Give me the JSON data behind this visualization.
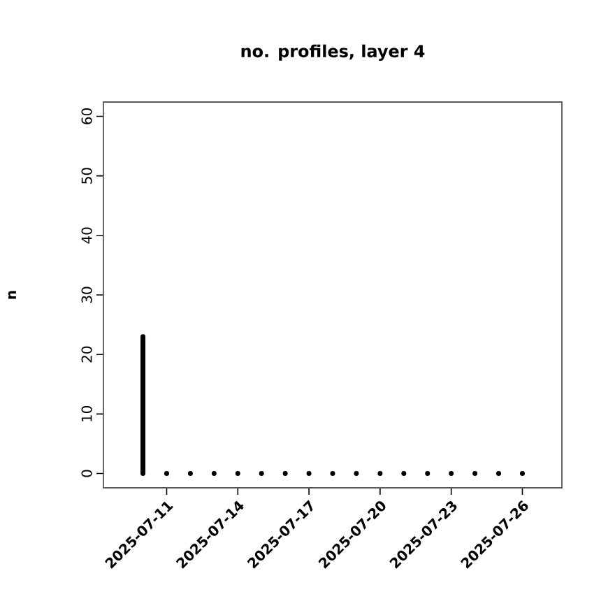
{
  "chart_data": {
    "type": "bar",
    "title": "no. profiles, layer 4",
    "ylabel": "n",
    "x": [
      "2025-07-10",
      "2025-07-11",
      "2025-07-12",
      "2025-07-13",
      "2025-07-14",
      "2025-07-15",
      "2025-07-16",
      "2025-07-17",
      "2025-07-18",
      "2025-07-19",
      "2025-07-20",
      "2025-07-21",
      "2025-07-22",
      "2025-07-23",
      "2025-07-24",
      "2025-07-25",
      "2025-07-26"
    ],
    "values": [
      23,
      0,
      0,
      0,
      0,
      0,
      0,
      0,
      0,
      0,
      0,
      0,
      0,
      0,
      0,
      0,
      0
    ],
    "color": "#000000",
    "xlim": [
      "2025-07-08T08:00",
      "2025-07-27T16:00"
    ],
    "xticks": [
      {
        "value": "2025-07-11",
        "label": "2025-07-11"
      },
      {
        "value": "2025-07-14",
        "label": "2025-07-14"
      },
      {
        "value": "2025-07-17",
        "label": "2025-07-17"
      },
      {
        "value": "2025-07-20",
        "label": "2025-07-20"
      },
      {
        "value": "2025-07-23",
        "label": "2025-07-23"
      },
      {
        "value": "2025-07-26",
        "label": "2025-07-26"
      }
    ],
    "ylim": [
      -2.4,
      62.4
    ],
    "yticks": [
      0,
      10,
      20,
      30,
      40,
      50,
      60
    ],
    "grid": false
  }
}
